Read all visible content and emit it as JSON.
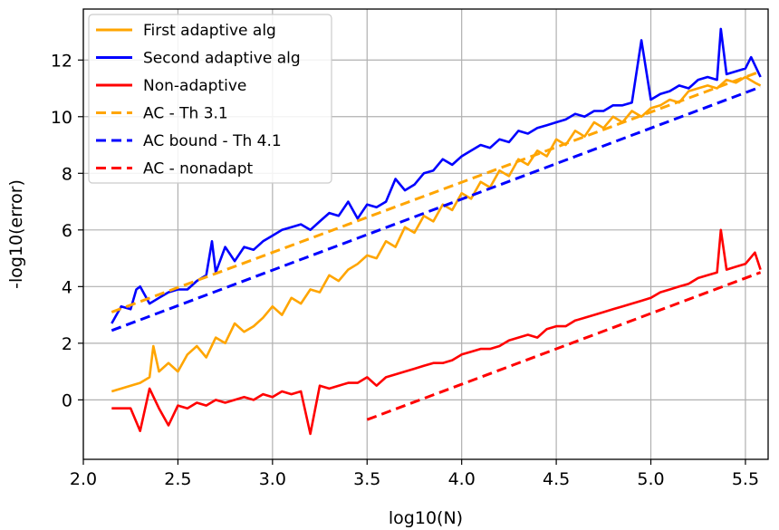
{
  "chart_data": {
    "type": "line",
    "xlabel": "log10(N)",
    "ylabel": "-log10(error)",
    "xlim": [
      2.0,
      5.62
    ],
    "ylim": [
      -2.1,
      13.8
    ],
    "xticks": [
      "2.0",
      "2.5",
      "3.0",
      "3.5",
      "4.0",
      "4.5",
      "5.0",
      "5.5"
    ],
    "xtick_values": [
      2.0,
      2.5,
      3.0,
      3.5,
      4.0,
      4.5,
      5.0,
      5.5
    ],
    "yticks": [
      "0",
      "2",
      "4",
      "6",
      "8",
      "10",
      "12"
    ],
    "ytick_values": [
      0,
      2,
      4,
      6,
      8,
      10,
      12
    ],
    "grid": true,
    "legend_position": "top-left",
    "series": [
      {
        "name": "First adaptive alg",
        "color": "#ffa500",
        "style": "solid",
        "x": [
          2.15,
          2.2,
          2.25,
          2.3,
          2.35,
          2.37,
          2.4,
          2.45,
          2.5,
          2.55,
          2.6,
          2.65,
          2.7,
          2.75,
          2.8,
          2.85,
          2.9,
          2.95,
          3.0,
          3.05,
          3.1,
          3.15,
          3.2,
          3.25,
          3.3,
          3.35,
          3.4,
          3.45,
          3.5,
          3.55,
          3.6,
          3.65,
          3.7,
          3.75,
          3.8,
          3.85,
          3.9,
          3.95,
          4.0,
          4.05,
          4.1,
          4.15,
          4.2,
          4.25,
          4.3,
          4.35,
          4.4,
          4.45,
          4.5,
          4.55,
          4.6,
          4.65,
          4.7,
          4.75,
          4.8,
          4.85,
          4.9,
          4.95,
          5.0,
          5.05,
          5.1,
          5.15,
          5.2,
          5.25,
          5.3,
          5.35,
          5.4,
          5.45,
          5.5,
          5.55,
          5.58
        ],
        "y": [
          0.3,
          0.4,
          0.5,
          0.6,
          0.8,
          1.9,
          1.0,
          1.3,
          1.0,
          1.6,
          1.9,
          1.5,
          2.2,
          2.0,
          2.7,
          2.4,
          2.6,
          2.9,
          3.3,
          3.0,
          3.6,
          3.4,
          3.9,
          3.8,
          4.4,
          4.2,
          4.6,
          4.8,
          5.1,
          5.0,
          5.6,
          5.4,
          6.1,
          5.9,
          6.5,
          6.3,
          6.9,
          6.7,
          7.3,
          7.1,
          7.7,
          7.5,
          8.1,
          7.9,
          8.5,
          8.3,
          8.8,
          8.6,
          9.2,
          9.0,
          9.5,
          9.3,
          9.8,
          9.6,
          10.0,
          9.8,
          10.2,
          10.0,
          10.3,
          10.4,
          10.6,
          10.5,
          10.9,
          11.0,
          11.1,
          11.0,
          11.3,
          11.2,
          11.4,
          11.2,
          11.1
        ]
      },
      {
        "name": "Second adaptive alg",
        "color": "#0000ff",
        "style": "solid",
        "x": [
          2.15,
          2.2,
          2.25,
          2.28,
          2.3,
          2.35,
          2.4,
          2.45,
          2.5,
          2.55,
          2.6,
          2.65,
          2.68,
          2.7,
          2.75,
          2.8,
          2.85,
          2.9,
          2.95,
          3.0,
          3.05,
          3.1,
          3.15,
          3.2,
          3.25,
          3.3,
          3.35,
          3.4,
          3.45,
          3.5,
          3.55,
          3.6,
          3.65,
          3.7,
          3.75,
          3.8,
          3.85,
          3.9,
          3.95,
          4.0,
          4.05,
          4.1,
          4.15,
          4.2,
          4.25,
          4.3,
          4.35,
          4.4,
          4.45,
          4.5,
          4.55,
          4.6,
          4.65,
          4.7,
          4.75,
          4.8,
          4.85,
          4.9,
          4.95,
          5.0,
          5.05,
          5.1,
          5.15,
          5.2,
          5.25,
          5.3,
          5.35,
          5.37,
          5.4,
          5.45,
          5.5,
          5.53,
          5.58
        ],
        "y": [
          2.7,
          3.3,
          3.2,
          3.9,
          4.0,
          3.4,
          3.6,
          3.8,
          3.9,
          3.9,
          4.2,
          4.4,
          5.6,
          4.5,
          5.4,
          4.9,
          5.4,
          5.3,
          5.6,
          5.8,
          6.0,
          6.1,
          6.2,
          6.0,
          6.3,
          6.6,
          6.5,
          7.0,
          6.4,
          6.9,
          6.8,
          7.0,
          7.8,
          7.4,
          7.6,
          8.0,
          8.1,
          8.5,
          8.3,
          8.6,
          8.8,
          9.0,
          8.9,
          9.2,
          9.1,
          9.5,
          9.4,
          9.6,
          9.7,
          9.8,
          9.9,
          10.1,
          10.0,
          10.2,
          10.2,
          10.4,
          10.4,
          10.5,
          12.7,
          10.6,
          10.8,
          10.9,
          11.1,
          11.0,
          11.3,
          11.4,
          11.3,
          13.1,
          11.5,
          11.6,
          11.7,
          12.1,
          11.4
        ]
      },
      {
        "name": "Non-adaptive",
        "color": "#ff0000",
        "style": "solid",
        "x": [
          2.15,
          2.2,
          2.25,
          2.3,
          2.35,
          2.4,
          2.45,
          2.5,
          2.55,
          2.6,
          2.65,
          2.7,
          2.75,
          2.8,
          2.85,
          2.9,
          2.95,
          3.0,
          3.05,
          3.1,
          3.15,
          3.2,
          3.25,
          3.3,
          3.35,
          3.4,
          3.45,
          3.5,
          3.55,
          3.6,
          3.65,
          3.7,
          3.75,
          3.8,
          3.85,
          3.9,
          3.95,
          4.0,
          4.05,
          4.1,
          4.15,
          4.2,
          4.25,
          4.3,
          4.35,
          4.4,
          4.45,
          4.5,
          4.55,
          4.6,
          4.65,
          4.7,
          4.75,
          4.8,
          4.85,
          4.9,
          4.95,
          5.0,
          5.05,
          5.1,
          5.15,
          5.2,
          5.25,
          5.3,
          5.35,
          5.37,
          5.4,
          5.45,
          5.5,
          5.55,
          5.58
        ],
        "y": [
          -0.3,
          -0.3,
          -0.3,
          -1.1,
          0.4,
          -0.3,
          -0.9,
          -0.2,
          -0.3,
          -0.1,
          -0.2,
          0.0,
          -0.1,
          0.0,
          0.1,
          0.0,
          0.2,
          0.1,
          0.3,
          0.2,
          0.3,
          -1.2,
          0.5,
          0.4,
          0.5,
          0.6,
          0.6,
          0.8,
          0.5,
          0.8,
          0.9,
          1.0,
          1.1,
          1.2,
          1.3,
          1.3,
          1.4,
          1.6,
          1.7,
          1.8,
          1.8,
          1.9,
          2.1,
          2.2,
          2.3,
          2.2,
          2.5,
          2.6,
          2.6,
          2.8,
          2.9,
          3.0,
          3.1,
          3.2,
          3.3,
          3.4,
          3.5,
          3.6,
          3.8,
          3.9,
          4.0,
          4.1,
          4.3,
          4.4,
          4.5,
          6.0,
          4.6,
          4.7,
          4.8,
          5.2,
          4.6
        ]
      },
      {
        "name": "AC - Th 3.1",
        "color": "#ffa500",
        "style": "dashed",
        "x": [
          2.15,
          5.58
        ],
        "y": [
          3.1,
          11.6
        ]
      },
      {
        "name": "AC bound - Th 4.1",
        "color": "#0000ff",
        "style": "dashed",
        "x": [
          2.15,
          5.58
        ],
        "y": [
          2.45,
          11.05
        ]
      },
      {
        "name": "AC - nonadapt",
        "color": "#ff0000",
        "style": "dashed",
        "x": [
          3.5,
          5.58
        ],
        "y": [
          -0.7,
          4.5
        ]
      }
    ]
  }
}
